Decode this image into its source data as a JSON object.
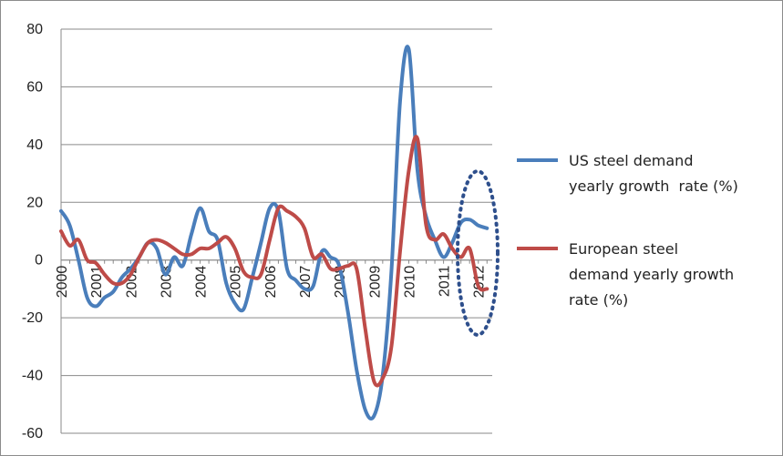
{
  "chart_data": {
    "type": "line",
    "title": "",
    "xlabel": "",
    "ylabel": "",
    "ylim": [
      -60,
      80
    ],
    "y_ticks": [
      "80",
      "60",
      "40",
      "20",
      "0",
      "-20",
      "-40",
      "-60"
    ],
    "y_tick_values": [
      80,
      60,
      40,
      20,
      0,
      -20,
      -40,
      -60
    ],
    "x_ticks": [
      "2000",
      "2001",
      "2002",
      "2003",
      "2004",
      "2005",
      "2006",
      "2007",
      "2008",
      "2009",
      "2010",
      "2011",
      "2012"
    ],
    "x_tick_values": [
      2000,
      2001,
      2002,
      2003,
      2004,
      2005,
      2006,
      2007,
      2008,
      2009,
      2010,
      2011,
      2012
    ],
    "xlim": [
      2000,
      2012.4
    ],
    "grid": "horizontal",
    "legend_position": "right",
    "highlight": "dotted ellipse around 2011.5-2012.3",
    "series": [
      {
        "name": "US steel demand yearly growth rate (%)",
        "color": "#4a7ebb",
        "x": [
          2000.0,
          2000.25,
          2000.5,
          2000.75,
          2001.0,
          2001.25,
          2001.5,
          2001.75,
          2002.0,
          2002.25,
          2002.5,
          2002.75,
          2003.0,
          2003.25,
          2003.5,
          2003.75,
          2004.0,
          2004.25,
          2004.5,
          2004.75,
          2005.0,
          2005.25,
          2005.5,
          2005.75,
          2006.0,
          2006.25,
          2006.5,
          2006.75,
          2007.0,
          2007.25,
          2007.5,
          2007.75,
          2008.0,
          2008.25,
          2008.5,
          2008.75,
          2009.0,
          2009.25,
          2009.5,
          2009.75,
          2010.0,
          2010.25,
          2010.5,
          2010.75,
          2011.0,
          2011.25,
          2011.5,
          2011.75,
          2012.0,
          2012.25
        ],
        "values": [
          17,
          12,
          0,
          -13,
          -16,
          -13,
          -11,
          -6,
          -3,
          1,
          6,
          4,
          -5,
          1,
          -2,
          9,
          18,
          10,
          7,
          -8,
          -15,
          -17,
          -6,
          6,
          18,
          17,
          -3,
          -7,
          -10,
          -9,
          3,
          1,
          -2,
          -18,
          -38,
          -52,
          -54,
          -40,
          -4,
          55,
          73,
          31,
          15,
          7,
          1,
          6,
          13,
          14,
          12,
          11
        ]
      },
      {
        "name": "European steel demand yearly growth rate (%)",
        "color": "#be4b48",
        "x": [
          2000.0,
          2000.25,
          2000.5,
          2000.75,
          2001.0,
          2001.25,
          2001.5,
          2001.75,
          2002.0,
          2002.25,
          2002.5,
          2002.75,
          2003.0,
          2003.25,
          2003.5,
          2003.75,
          2004.0,
          2004.25,
          2004.5,
          2004.75,
          2005.0,
          2005.25,
          2005.5,
          2005.75,
          2006.0,
          2006.25,
          2006.5,
          2006.75,
          2007.0,
          2007.25,
          2007.5,
          2007.75,
          2008.0,
          2008.25,
          2008.5,
          2008.75,
          2009.0,
          2009.25,
          2009.5,
          2009.75,
          2010.0,
          2010.25,
          2010.5,
          2010.75,
          2011.0,
          2011.25,
          2011.5,
          2011.75,
          2012.0,
          2012.25
        ],
        "values": [
          10,
          5,
          7,
          0,
          -1,
          -5,
          -8,
          -8,
          -5,
          1,
          6,
          7,
          6,
          4,
          2,
          2,
          4,
          4,
          6,
          8,
          4,
          -4,
          -6,
          -5,
          7,
          18,
          17,
          15,
          11,
          1,
          2,
          -3,
          -3,
          -2,
          -3,
          -24,
          -42,
          -41,
          -30,
          3,
          31,
          42,
          12,
          7,
          9,
          4,
          1,
          4,
          -9,
          -10
        ]
      }
    ]
  }
}
